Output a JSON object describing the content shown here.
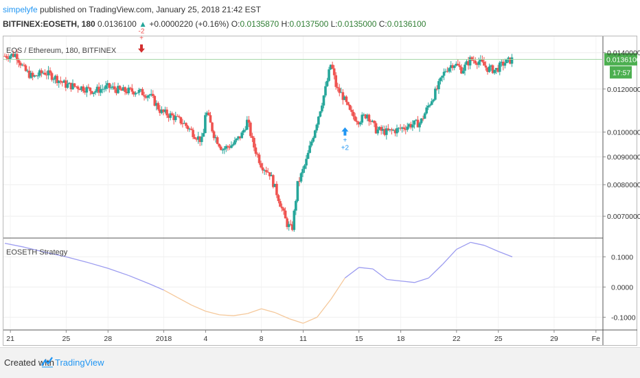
{
  "header": {
    "user": "simpelyfe",
    "published": " published on TradingView.com, January 25, 2018 21:42 EST"
  },
  "ohlc": {
    "symbol": "BITFINEX:EOSETH, 180",
    "last": "0.0136100",
    "change": "+0.0000220 (+0.16%)",
    "o_label": "O:",
    "o": "0.0135870",
    "h_label": "H:",
    "h": "0.0137500",
    "l_label": "L:",
    "l": "0.0135000",
    "c_label": "C:",
    "c": "0.0136100"
  },
  "colors": {
    "up": "#26a69a",
    "down": "#ef5350",
    "accent": "#2196f3",
    "price_tag": "#4caf50",
    "osc_pos": "#9b9bf0",
    "osc_neg": "#f5c89a"
  },
  "chart_data": [
    {
      "type": "candlestick",
      "title": "EOS / Ethereum, 180, BITFINEX",
      "y_ticks": [
        "0.0140000",
        "0.0120000",
        "0.0100000",
        "0.0090000",
        "0.0080000",
        "0.0070000"
      ],
      "y_tick_values": [
        0.014,
        0.012,
        0.01,
        0.009,
        0.008,
        0.007
      ],
      "y_scale": "log",
      "ylim": [
        0.0064,
        0.015
      ],
      "last_price_tag": "0.0136100",
      "countdown_tag": "17:57",
      "x_ticks": [
        "21",
        "25",
        "28",
        "2018",
        "4",
        "8",
        "11",
        "15",
        "18",
        "22",
        "25",
        "29",
        "Fe"
      ],
      "x_tick_days": [
        -10,
        -6,
        -3,
        1,
        4,
        8,
        11,
        15,
        18,
        22,
        25,
        29,
        32
      ],
      "x_range_days": [
        -10.5,
        32.5
      ],
      "signals": [
        {
          "label": "-2",
          "day": -0.6,
          "side": "sell",
          "price": 0.014,
          "marker": "+"
        },
        {
          "label": "+2",
          "day": 14.0,
          "side": "buy",
          "price": 0.0102,
          "marker": "+"
        }
      ],
      "close_path": [
        [
          -10.4,
          0.0138
        ],
        [
          -9.6,
          0.0139
        ],
        [
          -9.0,
          0.013
        ],
        [
          -8.4,
          0.0126
        ],
        [
          -7.6,
          0.0129
        ],
        [
          -6.8,
          0.0126
        ],
        [
          -6.0,
          0.0122
        ],
        [
          -5.0,
          0.0121
        ],
        [
          -4.0,
          0.0119
        ],
        [
          -3.0,
          0.0121
        ],
        [
          -2.0,
          0.0119
        ],
        [
          -1.0,
          0.0119
        ],
        [
          0.0,
          0.0117
        ],
        [
          0.8,
          0.0109
        ],
        [
          1.6,
          0.0107
        ],
        [
          2.4,
          0.0104
        ],
        [
          3.2,
          0.0099
        ],
        [
          3.8,
          0.0096
        ],
        [
          4.0,
          0.011
        ],
        [
          4.6,
          0.0099
        ],
        [
          5.2,
          0.0093
        ],
        [
          6.0,
          0.0095
        ],
        [
          6.6,
          0.0099
        ],
        [
          7.0,
          0.0105
        ],
        [
          7.4,
          0.0095
        ],
        [
          8.0,
          0.0087
        ],
        [
          8.6,
          0.0084
        ],
        [
          9.2,
          0.0076
        ],
        [
          9.8,
          0.0068
        ],
        [
          10.2,
          0.0066
        ],
        [
          10.6,
          0.008
        ],
        [
          11.2,
          0.0088
        ],
        [
          12.0,
          0.0105
        ],
        [
          12.6,
          0.012
        ],
        [
          13.0,
          0.0134
        ],
        [
          13.4,
          0.012
        ],
        [
          13.8,
          0.0117
        ],
        [
          14.4,
          0.0108
        ],
        [
          15.0,
          0.0105
        ],
        [
          15.6,
          0.0108
        ],
        [
          16.2,
          0.0101
        ],
        [
          17.0,
          0.01
        ],
        [
          17.8,
          0.0101
        ],
        [
          18.6,
          0.0103
        ],
        [
          19.4,
          0.0104
        ],
        [
          20.0,
          0.0112
        ],
        [
          20.6,
          0.012
        ],
        [
          21.2,
          0.013
        ],
        [
          21.8,
          0.0134
        ],
        [
          22.4,
          0.013
        ],
        [
          23.0,
          0.0136
        ],
        [
          23.6,
          0.0135
        ],
        [
          24.2,
          0.0131
        ],
        [
          24.8,
          0.013
        ],
        [
          25.4,
          0.0134
        ],
        [
          26.0,
          0.0136
        ]
      ]
    },
    {
      "type": "line",
      "title": "EOSETH Strategy",
      "y_ticks": [
        "0.1000",
        "0.0000",
        "-0.1000"
      ],
      "y_tick_values": [
        0.1,
        0.0,
        -0.1
      ],
      "ylim": [
        -0.14,
        0.16
      ],
      "series": [
        {
          "x": [
            -10.4,
            -9.0,
            -7.5,
            -6.0,
            -4.5,
            -3.0,
            -1.5,
            0.0,
            1.0,
            2.0,
            3.0,
            4.0,
            5.0,
            6.0,
            7.0,
            8.0,
            9.0,
            10.0,
            11.0,
            12.0,
            13.0,
            14.0,
            15.0,
            16.0,
            17.0,
            18.0,
            19.0,
            20.0,
            21.0,
            22.0,
            23.0,
            24.0,
            25.0,
            26.0
          ],
          "y": [
            0.145,
            0.132,
            0.115,
            0.1,
            0.082,
            0.062,
            0.038,
            0.01,
            -0.01,
            -0.035,
            -0.06,
            -0.08,
            -0.092,
            -0.095,
            -0.088,
            -0.072,
            -0.085,
            -0.105,
            -0.12,
            -0.1,
            -0.04,
            0.03,
            0.065,
            0.06,
            0.025,
            0.02,
            0.015,
            0.03,
            0.075,
            0.125,
            0.148,
            0.138,
            0.118,
            0.1
          ]
        }
      ]
    }
  ],
  "footer": {
    "created_with": "Created with",
    "brand": "TradingView"
  }
}
